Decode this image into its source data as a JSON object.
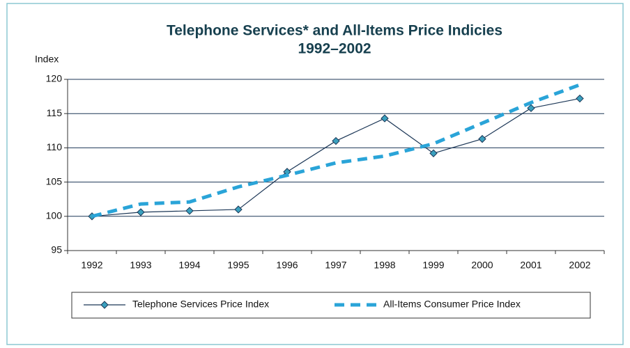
{
  "chart_data": {
    "type": "line",
    "title": "Telephone Services* and All-Items Price Indicies",
    "subtitle": "1992–2002",
    "y_label": "Index",
    "categories": [
      "1992",
      "1993",
      "1994",
      "1995",
      "1996",
      "1997",
      "1998",
      "1999",
      "2000",
      "2001",
      "2002"
    ],
    "series": [
      {
        "name": "Telephone Services Price Index",
        "color": "#1b3656",
        "marker_color": "#3aa0be",
        "values": [
          100,
          100.6,
          100.8,
          101,
          106.5,
          111,
          114.3,
          109.2,
          111.3,
          115.8,
          117.2
        ]
      },
      {
        "name": "All-Items Consumer Price Index",
        "color": "#2aa4d8",
        "dashed": true,
        "values": [
          100,
          101.8,
          102.1,
          104.3,
          106,
          107.8,
          108.8,
          110.6,
          113.6,
          116.6,
          119.2
        ]
      }
    ],
    "ylim": [
      95,
      120
    ],
    "yticks": [
      95,
      100,
      105,
      110,
      115,
      120
    ],
    "grid": true,
    "legend": "bottom"
  }
}
